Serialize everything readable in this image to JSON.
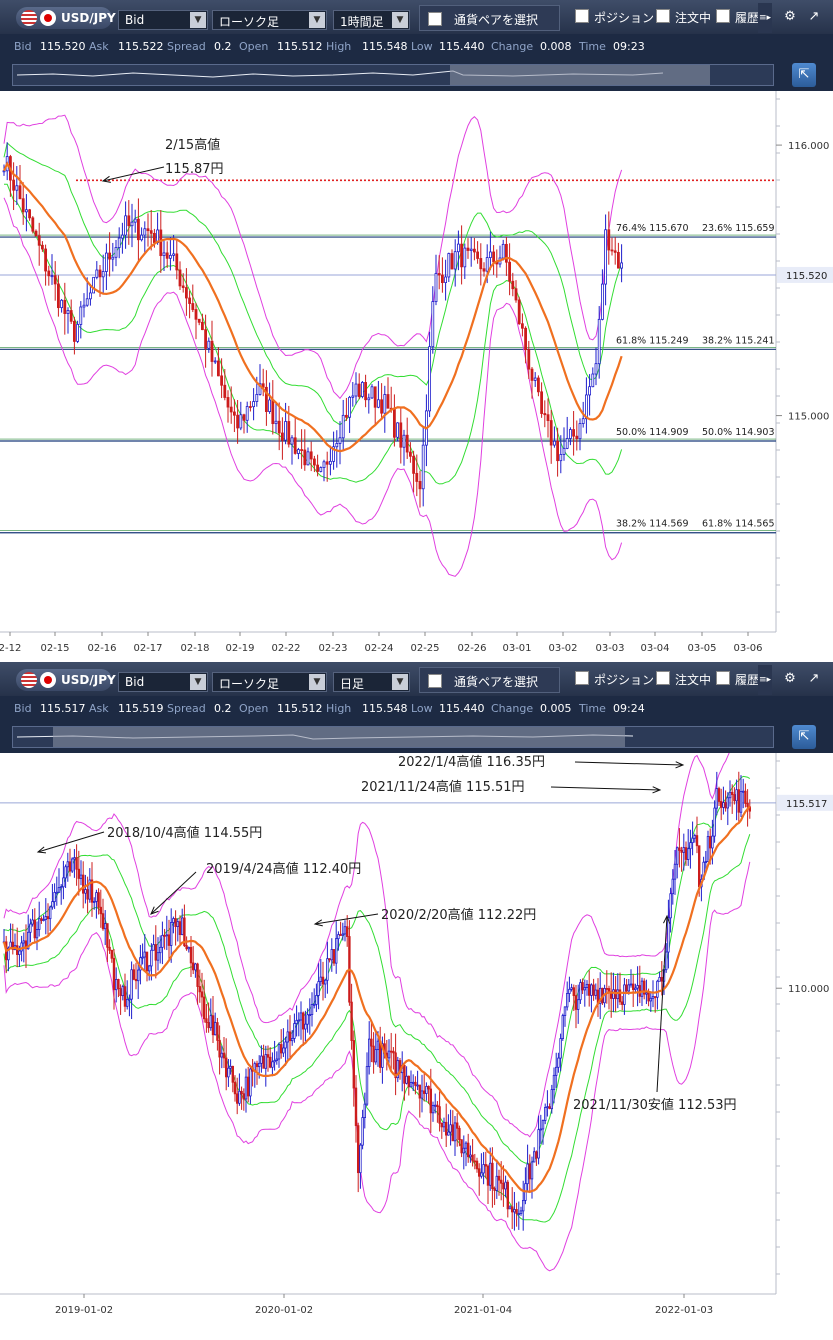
{
  "panels": [
    {
      "toolbar": {
        "pair": "USD/JPY",
        "price_type": "Bid",
        "chart_type": "ローソク足",
        "timeframe": "1時間足",
        "pair_select": "通貨ペアを選択",
        "position": "ポジション",
        "orders": "注文中",
        "history": "履歴"
      },
      "info": {
        "bid_label": "Bid",
        "bid": "115.520",
        "ask_label": "Ask",
        "ask": "115.522",
        "spread_label": "Spread",
        "spread": "0.2",
        "open_label": "Open",
        "open": "115.512",
        "high_label": "High",
        "high": "115.548",
        "low_label": "Low",
        "low": "115.440",
        "change_label": "Change",
        "change": "0.008",
        "time_label": "Time",
        "time": "09:23"
      }
    },
    {
      "toolbar": {
        "pair": "USD/JPY",
        "price_type": "Bid",
        "chart_type": "ローソク足",
        "timeframe": "日足",
        "pair_select": "通貨ペアを選択",
        "position": "ポジション",
        "orders": "注文中",
        "history": "履歴"
      },
      "info": {
        "bid_label": "Bid",
        "bid": "115.517",
        "ask_label": "Ask",
        "ask": "115.519",
        "spread_label": "Spread",
        "spread": "0.2",
        "open_label": "Open",
        "open": "115.512",
        "high_label": "High",
        "high": "115.548",
        "low_label": "Low",
        "low": "115.440",
        "change_label": "Change",
        "change": "0.005",
        "time_label": "Time",
        "time": "09:24"
      }
    }
  ],
  "colors": {
    "up_candle": "#1d1dcc",
    "down_candle": "#cc1d1d",
    "ma": "#f07020",
    "inner_band": "#33dd33",
    "outer_band": "#e040e0",
    "dotted_line": "#e02020",
    "fib_line": "#1a3a7a",
    "price_line": "#9aa6d8"
  },
  "chart_data": [
    {
      "type": "candlestick",
      "timeframe": "1時間足",
      "x_tick_labels": [
        "2-12",
        "02-15",
        "02-16",
        "02-17",
        "02-18",
        "02-19",
        "02-22",
        "02-23",
        "02-24",
        "02-25",
        "02-26",
        "03-01",
        "03-02",
        "03-03",
        "03-04",
        "03-05",
        "03-06"
      ],
      "y_ticks": [
        115.0,
        116.0
      ],
      "y_tick_labels": [
        "115.000",
        "116.000"
      ],
      "ylim": [
        114.2,
        116.2
      ],
      "price_axis_label": "115.520",
      "current_price": 115.52,
      "close_path": [
        {
          "x": 0,
          "y": 115.95
        },
        {
          "x": 0.8,
          "y": 115.6
        },
        {
          "x": 1.5,
          "y": 115.3
        },
        {
          "x": 2.0,
          "y": 115.5
        },
        {
          "x": 2.6,
          "y": 115.7
        },
        {
          "x": 3.2,
          "y": 115.68
        },
        {
          "x": 3.7,
          "y": 115.55
        },
        {
          "x": 4.2,
          "y": 115.35
        },
        {
          "x": 4.6,
          "y": 115.15
        },
        {
          "x": 5.0,
          "y": 114.95
        },
        {
          "x": 5.5,
          "y": 115.1
        },
        {
          "x": 6.0,
          "y": 114.95
        },
        {
          "x": 6.5,
          "y": 114.85
        },
        {
          "x": 6.8,
          "y": 114.75
        },
        {
          "x": 7.1,
          "y": 114.9
        },
        {
          "x": 7.6,
          "y": 115.1
        },
        {
          "x": 8.2,
          "y": 115.05
        },
        {
          "x": 8.6,
          "y": 114.9
        },
        {
          "x": 9.0,
          "y": 114.75
        },
        {
          "x": 9.3,
          "y": 115.5
        },
        {
          "x": 9.8,
          "y": 115.6
        },
        {
          "x": 10.3,
          "y": 115.55
        },
        {
          "x": 10.8,
          "y": 115.6
        },
        {
          "x": 11.2,
          "y": 115.3
        },
        {
          "x": 11.6,
          "y": 115.0
        },
        {
          "x": 12.0,
          "y": 114.85
        },
        {
          "x": 12.4,
          "y": 114.95
        },
        {
          "x": 12.8,
          "y": 115.2
        },
        {
          "x": 13.0,
          "y": 115.68
        },
        {
          "x": 13.4,
          "y": 115.52
        }
      ],
      "annotations": [
        {
          "text": "2/15高値",
          "text2": "115.87円"
        }
      ],
      "dotted_high_line": 115.87,
      "fib_levels": [
        {
          "price": 115.66,
          "left": "76.4%  115.670",
          "right": "23.6%  115.659"
        },
        {
          "price": 115.245,
          "left": "61.8%  115.249",
          "right": "38.2%  115.241"
        },
        {
          "price": 114.906,
          "left": "50.0%  114.909",
          "right": "50.0%  114.903"
        },
        {
          "price": 114.567,
          "left": "38.2%  114.569",
          "right": "61.8%  114.565"
        }
      ],
      "grid": false,
      "legend": "none"
    },
    {
      "type": "candlestick",
      "timeframe": "日足",
      "x_tick_labels": [
        "2019-01-02",
        "2020-01-02",
        "2021-01-04",
        "2022-01-03"
      ],
      "y_ticks": [
        110.0
      ],
      "y_tick_labels": [
        "110.000"
      ],
      "ylim": [
        100.9,
        117.0
      ],
      "price_axis_label": "115.517",
      "current_price": 115.517,
      "close_path": [
        {
          "x": 2018.45,
          "y": 111.0
        },
        {
          "x": 2018.6,
          "y": 112.0
        },
        {
          "x": 2018.76,
          "y": 113.6
        },
        {
          "x": 2018.9,
          "y": 112.6
        },
        {
          "x": 2019.0,
          "y": 109.5
        },
        {
          "x": 2019.12,
          "y": 110.8
        },
        {
          "x": 2019.31,
          "y": 111.9
        },
        {
          "x": 2019.42,
          "y": 109.5
        },
        {
          "x": 2019.6,
          "y": 106.8
        },
        {
          "x": 2019.75,
          "y": 108.0
        },
        {
          "x": 2019.95,
          "y": 109.2
        },
        {
          "x": 2020.14,
          "y": 111.8
        },
        {
          "x": 2020.2,
          "y": 104.3
        },
        {
          "x": 2020.25,
          "y": 108.3
        },
        {
          "x": 2020.5,
          "y": 107.2
        },
        {
          "x": 2020.7,
          "y": 105.5
        },
        {
          "x": 2020.9,
          "y": 104.2
        },
        {
          "x": 2021.0,
          "y": 103.4
        },
        {
          "x": 2021.15,
          "y": 106.3
        },
        {
          "x": 2021.25,
          "y": 109.7
        },
        {
          "x": 2021.45,
          "y": 110.0
        },
        {
          "x": 2021.6,
          "y": 109.8
        },
        {
          "x": 2021.72,
          "y": 110.2
        },
        {
          "x": 2021.8,
          "y": 113.8
        },
        {
          "x": 2021.9,
          "y": 114.6
        },
        {
          "x": 2021.91,
          "y": 112.8
        },
        {
          "x": 2022.01,
          "y": 115.8
        },
        {
          "x": 2022.17,
          "y": 115.5
        }
      ],
      "annotations": [
        {
          "text": "2022/1/4高値 116.35円"
        },
        {
          "text": "2021/11/24高値 115.51円"
        },
        {
          "text": "2018/10/4高値 114.55円"
        },
        {
          "text": "2019/4/24高値 112.40円"
        },
        {
          "text": "2020/2/20高値 112.22円"
        },
        {
          "text": "2021/11/30安値 112.53円"
        }
      ],
      "grid": false,
      "legend": "none"
    }
  ]
}
